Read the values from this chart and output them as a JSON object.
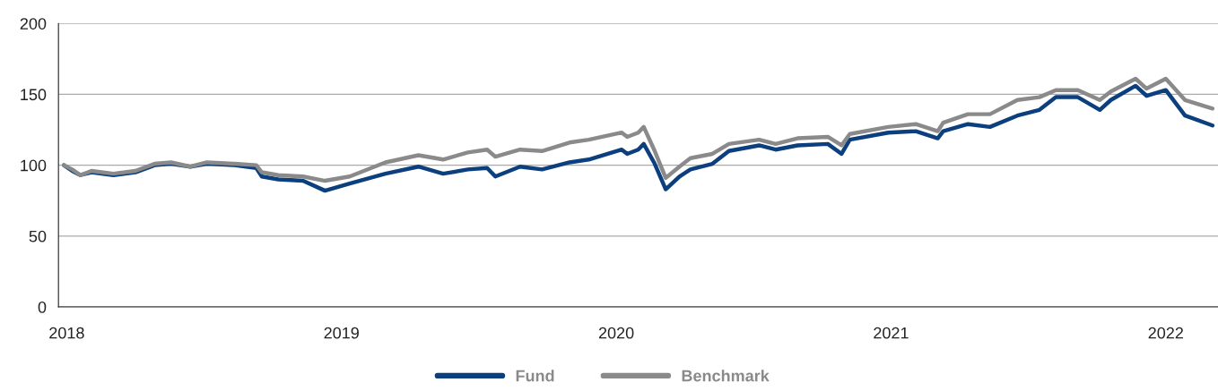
{
  "chart_data": {
    "type": "line",
    "x": [
      2017.99,
      2018.02,
      2018.05,
      2018.09,
      2018.17,
      2018.25,
      2018.32,
      2018.38,
      2018.45,
      2018.51,
      2018.61,
      2018.69,
      2018.71,
      2018.77,
      2018.86,
      2018.94,
      2019.03,
      2019.16,
      2019.28,
      2019.37,
      2019.46,
      2019.53,
      2019.56,
      2019.65,
      2019.73,
      2019.83,
      2019.9,
      2020.02,
      2020.04,
      2020.08,
      2020.1,
      2020.14,
      2020.18,
      2020.23,
      2020.27,
      2020.35,
      2020.41,
      2020.52,
      2020.58,
      2020.66,
      2020.77,
      2020.82,
      2020.85,
      2020.99,
      2021.09,
      2021.17,
      2021.19,
      2021.28,
      2021.36,
      2021.46,
      2021.54,
      2021.6,
      2021.68,
      2021.76,
      2021.8,
      2021.89,
      2021.93,
      2022.0,
      2022.07,
      2022.17
    ],
    "series": [
      {
        "name": "Fund",
        "color": "#0b3f7e",
        "values": [
          100,
          96,
          93,
          95,
          93,
          95,
          100,
          101,
          99,
          101,
          100,
          98,
          92,
          90,
          89,
          82,
          87,
          94,
          99,
          94,
          97,
          98,
          92,
          99,
          97,
          102,
          104,
          111,
          108,
          111,
          115,
          101,
          83,
          92,
          97,
          101,
          110,
          114,
          111,
          114,
          115,
          108,
          118,
          123,
          124,
          119,
          124,
          129,
          127,
          135,
          139,
          148,
          148,
          139,
          146,
          156,
          149,
          153,
          135,
          128
        ]
      },
      {
        "name": "Benchmark",
        "color": "#8a8a8a",
        "values": [
          100,
          97,
          93,
          96,
          94,
          96,
          101,
          102,
          99,
          102,
          101,
          100,
          95,
          93,
          92,
          89,
          92,
          102,
          107,
          104,
          109,
          111,
          106,
          111,
          110,
          116,
          118,
          123,
          120,
          123,
          127,
          110,
          91,
          99,
          105,
          108,
          115,
          118,
          115,
          119,
          120,
          114,
          122,
          127,
          129,
          124,
          130,
          136,
          136,
          146,
          148,
          153,
          153,
          146,
          152,
          161,
          154,
          161,
          146,
          140
        ]
      }
    ],
    "xlim": [
      2017.97,
      2022.19
    ],
    "xticks": [
      2018,
      2019,
      2020,
      2021,
      2022
    ],
    "ylim": [
      0,
      200
    ],
    "yticks": [
      0,
      50,
      100,
      150,
      200
    ],
    "grid": "y",
    "legend": "bottom",
    "line_style": "solid",
    "marker": "none"
  }
}
